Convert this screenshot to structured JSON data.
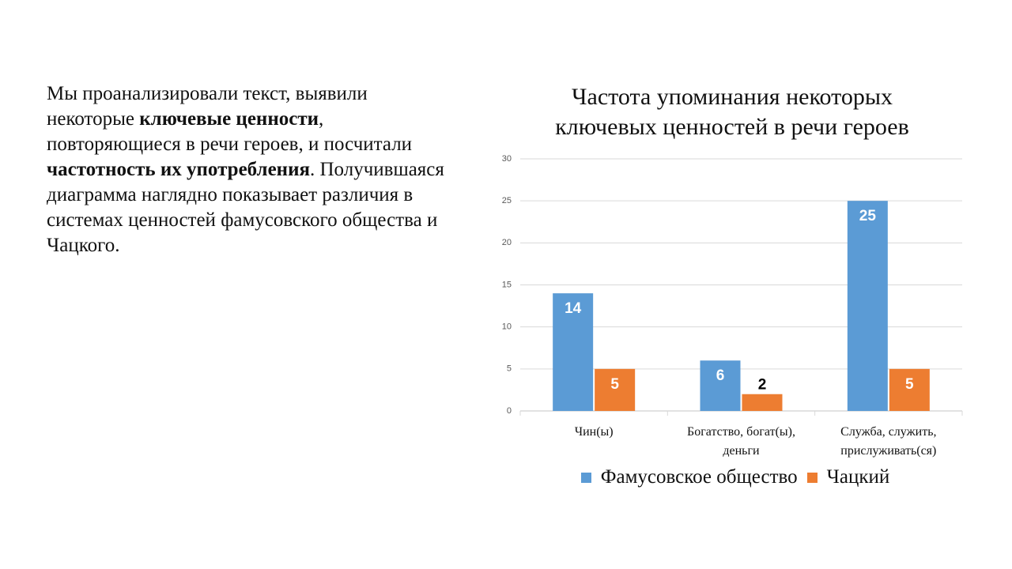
{
  "text": {
    "paragraph": [
      {
        "text": "Мы проанализировали текст, выявили некоторые ",
        "bold": false
      },
      {
        "text": "ключевые ценности",
        "bold": true
      },
      {
        "text": ", повторяющиеся в речи героев, и посчитали ",
        "bold": false
      },
      {
        "text": "частотность их употребления",
        "bold": true
      },
      {
        "text": ". Получившаяся диаграмма наглядно показывает различия в системах ценностей фамусовского общества и Чацкого.",
        "bold": false
      }
    ]
  },
  "chart_data": {
    "type": "bar",
    "title": "Частота упоминания некоторых ключевых ценностей в речи героев",
    "categories": [
      "Чин(ы)",
      "Богатство, богат(ы), деньги",
      "Служба, служить, прислуживать(ся)"
    ],
    "series": [
      {
        "name": "Фамусовское общество",
        "color": "#5b9bd5",
        "values": [
          14,
          6,
          25
        ]
      },
      {
        "name": "Чацкий",
        "color": "#ed7d31",
        "values": [
          5,
          2,
          5
        ]
      }
    ],
    "ylim": [
      0,
      30
    ],
    "yticks": [
      0,
      5,
      10,
      15,
      20,
      25,
      30
    ],
    "grid": true,
    "legend": "bottom"
  }
}
